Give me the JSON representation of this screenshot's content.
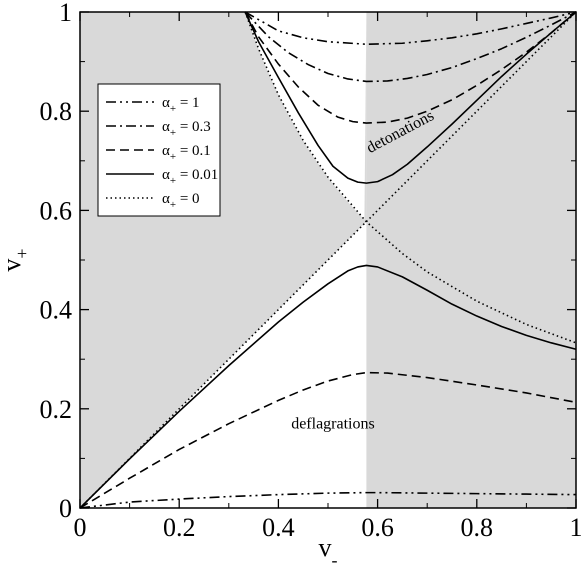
{
  "chart_data": {
    "type": "line",
    "title": "",
    "xlabel": "v",
    "xlabel_sub": "-",
    "ylabel": "v",
    "ylabel_sub": "+",
    "xlim": [
      0,
      1
    ],
    "ylim": [
      0,
      1
    ],
    "x_ticks": [
      "0",
      "0.2",
      "0.4",
      "0.6",
      "0.8",
      "1"
    ],
    "y_ticks": [
      "0",
      "0.2",
      "0.4",
      "0.6",
      "0.8",
      "1"
    ],
    "shaded_regions": [
      {
        "x": [
          0,
          0.57735
        ],
        "y": [
          0,
          1
        ],
        "color": "#d9d9d9",
        "note": "left of v- = 1/sqrt(3), y up to 1"
      },
      {
        "x": [
          0.57735,
          1
        ],
        "y": [
          0,
          1
        ],
        "color": "#d9d9d9"
      }
    ],
    "legend": {
      "placement": "upper-left",
      "entries": [
        {
          "symbol": "α",
          "sub": "+",
          "rest": " = 1",
          "dash": "dashdotdot"
        },
        {
          "symbol": "α",
          "sub": "+",
          "rest": " = 0.3",
          "dash": "dashdot"
        },
        {
          "symbol": "α",
          "sub": "+",
          "rest": " = 0.1",
          "dash": "dashed"
        },
        {
          "symbol": "α",
          "sub": "+",
          "rest": " = 0.01",
          "dash": "solid"
        },
        {
          "symbol": "α",
          "sub": "+",
          "rest": " = 0",
          "dash": "dotted"
        }
      ]
    },
    "annotations": [
      {
        "text": "detonations",
        "x": 0.65,
        "y": 0.75,
        "rotation": -28
      },
      {
        "text": "deflagrations",
        "x": 0.51,
        "y": 0.16,
        "rotation": 0
      }
    ],
    "series": [
      {
        "alpha": 1,
        "dash": "dashdotdot",
        "branch": "detonation",
        "x": [
          0.333,
          0.4,
          0.45,
          0.5,
          0.5774,
          0.65,
          0.7,
          0.75,
          0.8,
          0.85,
          0.9,
          0.95,
          1.0
        ],
        "y": [
          1.0,
          0.962,
          0.948,
          0.94,
          0.935,
          0.937,
          0.942,
          0.948,
          0.956,
          0.966,
          0.977,
          0.988,
          1.0
        ]
      },
      {
        "alpha": 1,
        "dash": "dashdotdot",
        "branch": "deflagration",
        "x": [
          0.0,
          0.1,
          0.2,
          0.3,
          0.4,
          0.5,
          0.5774,
          0.6,
          0.7,
          0.8,
          0.9,
          1.0
        ],
        "y": [
          0.0,
          0.012,
          0.018,
          0.023,
          0.027,
          0.03,
          0.031,
          0.031,
          0.03,
          0.029,
          0.028,
          0.027
        ]
      },
      {
        "alpha": 0.3,
        "dash": "dashdot",
        "branch": "detonation",
        "x": [
          0.333,
          0.38,
          0.42,
          0.46,
          0.5,
          0.54,
          0.5774,
          0.62,
          0.66,
          0.7,
          0.75,
          0.8,
          0.85,
          0.9,
          0.95,
          1.0
        ],
        "y": [
          1.0,
          0.95,
          0.918,
          0.894,
          0.876,
          0.865,
          0.86,
          0.861,
          0.866,
          0.874,
          0.888,
          0.906,
          0.926,
          0.949,
          0.974,
          1.0
        ]
      },
      {
        "alpha": 0.1,
        "dash": "dashed",
        "branch": "detonation",
        "x": [
          0.333,
          0.36,
          0.4,
          0.44,
          0.48,
          0.52,
          0.55,
          0.5774,
          0.62,
          0.66,
          0.7,
          0.75,
          0.8,
          0.85,
          0.9,
          0.95,
          1.0
        ],
        "y": [
          1.0,
          0.95,
          0.895,
          0.849,
          0.812,
          0.788,
          0.779,
          0.776,
          0.778,
          0.786,
          0.8,
          0.823,
          0.852,
          0.884,
          0.919,
          0.958,
          1.0
        ]
      },
      {
        "alpha": 0.1,
        "dash": "dashed",
        "branch": "deflagration",
        "x": [
          0.0,
          0.1,
          0.2,
          0.3,
          0.4,
          0.45,
          0.5,
          0.55,
          0.5774,
          0.62,
          0.7,
          0.8,
          0.9,
          1.0
        ],
        "y": [
          0.0,
          0.06,
          0.118,
          0.17,
          0.217,
          0.238,
          0.256,
          0.269,
          0.273,
          0.272,
          0.263,
          0.248,
          0.232,
          0.213
        ]
      },
      {
        "alpha": 0.01,
        "dash": "solid",
        "branch": "detonation",
        "x": [
          0.333,
          0.36,
          0.4,
          0.44,
          0.48,
          0.51,
          0.54,
          0.56,
          0.5774,
          0.6,
          0.63,
          0.66,
          0.7,
          0.75,
          0.8,
          0.85,
          0.9,
          0.95,
          1.0
        ],
        "y": [
          1.0,
          0.94,
          0.868,
          0.797,
          0.731,
          0.689,
          0.665,
          0.657,
          0.655,
          0.658,
          0.672,
          0.693,
          0.728,
          0.774,
          0.822,
          0.87,
          0.915,
          0.958,
          1.0
        ]
      },
      {
        "alpha": 0.01,
        "dash": "solid",
        "branch": "deflagration",
        "x": [
          0.0,
          0.1,
          0.2,
          0.3,
          0.4,
          0.45,
          0.5,
          0.54,
          0.56,
          0.5774,
          0.6,
          0.65,
          0.7,
          0.75,
          0.8,
          0.85,
          0.9,
          0.95,
          1.0
        ],
        "y": [
          0.0,
          0.099,
          0.195,
          0.287,
          0.375,
          0.415,
          0.452,
          0.478,
          0.486,
          0.489,
          0.486,
          0.466,
          0.439,
          0.411,
          0.387,
          0.366,
          0.348,
          0.333,
          0.32
        ]
      },
      {
        "alpha": 0,
        "dash": "dotted",
        "branch": "y = x",
        "x": [
          0.0,
          0.5774,
          1.0
        ],
        "y": [
          0.0,
          0.5774,
          1.0
        ]
      },
      {
        "alpha": 0,
        "dash": "dotted",
        "branch": "y = 1/(3x)",
        "x": [
          0.333,
          0.36,
          0.4,
          0.45,
          0.5,
          0.5774,
          0.65,
          0.7,
          0.8,
          0.9,
          1.0
        ],
        "y": [
          1.0,
          0.926,
          0.833,
          0.741,
          0.667,
          0.577,
          0.513,
          0.476,
          0.417,
          0.37,
          0.333
        ]
      }
    ]
  }
}
